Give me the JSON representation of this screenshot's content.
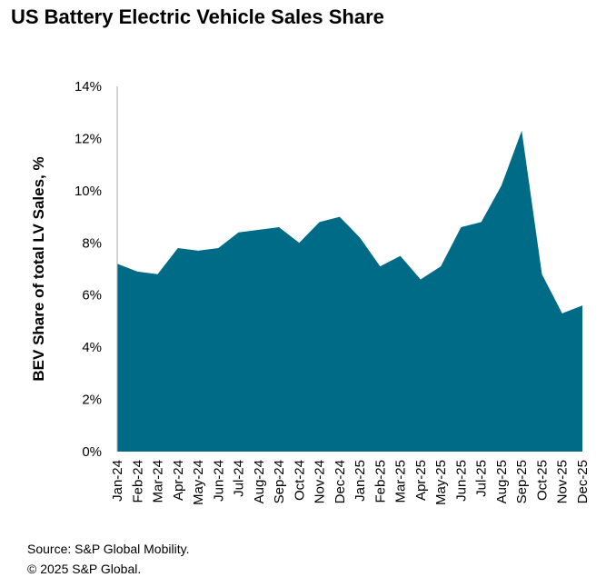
{
  "chart_data": {
    "type": "area",
    "title": "US Battery Electric Vehicle Sales Share",
    "xlabel": "",
    "ylabel": "BEV Share of total LV Sales, %",
    "ylim": [
      0,
      14
    ],
    "yticks": [
      "0%",
      "2%",
      "4%",
      "6%",
      "8%",
      "10%",
      "12%",
      "14%"
    ],
    "grid": false,
    "color": "#006B87",
    "categories": [
      "Jan-24",
      "Feb-24",
      "Mar-24",
      "Apr-24",
      "May-24",
      "Jun-24",
      "Jul-24",
      "Aug-24",
      "Sep-24",
      "Oct-24",
      "Nov-24",
      "Dec-24",
      "Jan-25",
      "Feb-25",
      "Mar-25",
      "Apr-25",
      "May-25",
      "Jun-25",
      "Jul-25",
      "Aug-25",
      "Sep-25",
      "Oct-25",
      "Nov-25",
      "Dec-25"
    ],
    "values": [
      7.2,
      6.9,
      6.8,
      7.8,
      7.7,
      7.8,
      8.4,
      8.5,
      8.6,
      8.0,
      8.8,
      9.0,
      8.2,
      7.1,
      7.5,
      6.6,
      7.1,
      8.6,
      8.8,
      10.2,
      12.3,
      6.8,
      5.3,
      5.6
    ]
  },
  "footer": {
    "source": "Source: S&P Global Mobility.",
    "copyright": "© 2025 S&P Global."
  }
}
